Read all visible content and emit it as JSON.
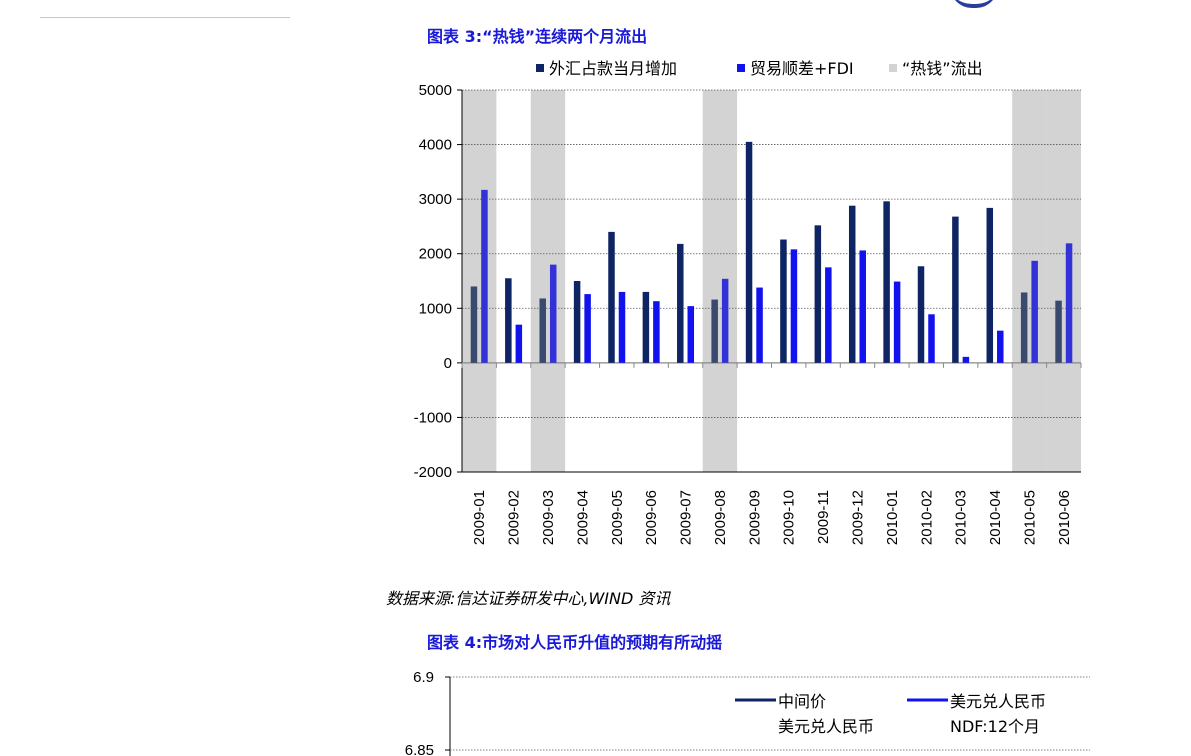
{
  "figure3": {
    "caption": "图表 3:“热钱”连续两个月流出",
    "source": "数据来源:信达证券研发中心,WIND 资讯"
  },
  "figure4": {
    "caption": "图表 4:市场对人民币升值的预期有所动摇"
  },
  "colors": {
    "series_fx": "#0f2462",
    "series_trade": "#1212ee",
    "shade": "#d3d3d3",
    "caption": "#1a1ad6"
  },
  "chart_data": [
    {
      "type": "bar",
      "title": "",
      "categories": [
        "2009-01",
        "2009-02",
        "2009-03",
        "2009-04",
        "2009-05",
        "2009-06",
        "2009-07",
        "2009-08",
        "2009-09",
        "2009-10",
        "2009-11",
        "2009-12",
        "2010-01",
        "2010-02",
        "2010-03",
        "2010-04",
        "2010-05",
        "2010-06"
      ],
      "series": [
        {
          "name": "外汇占款当月增加",
          "color": "#0f2462",
          "values": [
            1400,
            1550,
            1180,
            1500,
            2400,
            1300,
            2180,
            1160,
            4050,
            2260,
            2520,
            2880,
            2960,
            1770,
            2680,
            2840,
            1290,
            1140
          ]
        },
        {
          "name": "贸易顺差+FDI",
          "color": "#1212ee",
          "values": [
            3170,
            700,
            1800,
            1260,
            1300,
            1130,
            1040,
            1540,
            1380,
            2080,
            1750,
            2060,
            1490,
            890,
            110,
            590,
            1870,
            2190
          ]
        }
      ],
      "shaded": {
        "name": "“热钱”流出",
        "color": "#d3d3d3",
        "categories": [
          "2009-01",
          "2009-03",
          "2009-08",
          "2010-05",
          "2010-06"
        ]
      },
      "ylim": [
        -2000,
        5000
      ],
      "yticks": [
        5000,
        4000,
        3000,
        2000,
        1000,
        0,
        -1000,
        -2000
      ],
      "legend_position": "top",
      "grid": true
    },
    {
      "type": "line",
      "title": "",
      "series": [
        {
          "name": "中间价美元兑人民币",
          "name_line1": "中间价",
          "name_line2": "美元兑人民币",
          "color": "#0f2462"
        },
        {
          "name": "美元兑人民币NDF:12个月",
          "name_line1": "美元兑人民币",
          "name_line2": "NDF:12个月",
          "color": "#1212ee"
        }
      ],
      "yticks": [
        6.9,
        6.85
      ],
      "legend_position": "top-right",
      "grid": true
    }
  ]
}
